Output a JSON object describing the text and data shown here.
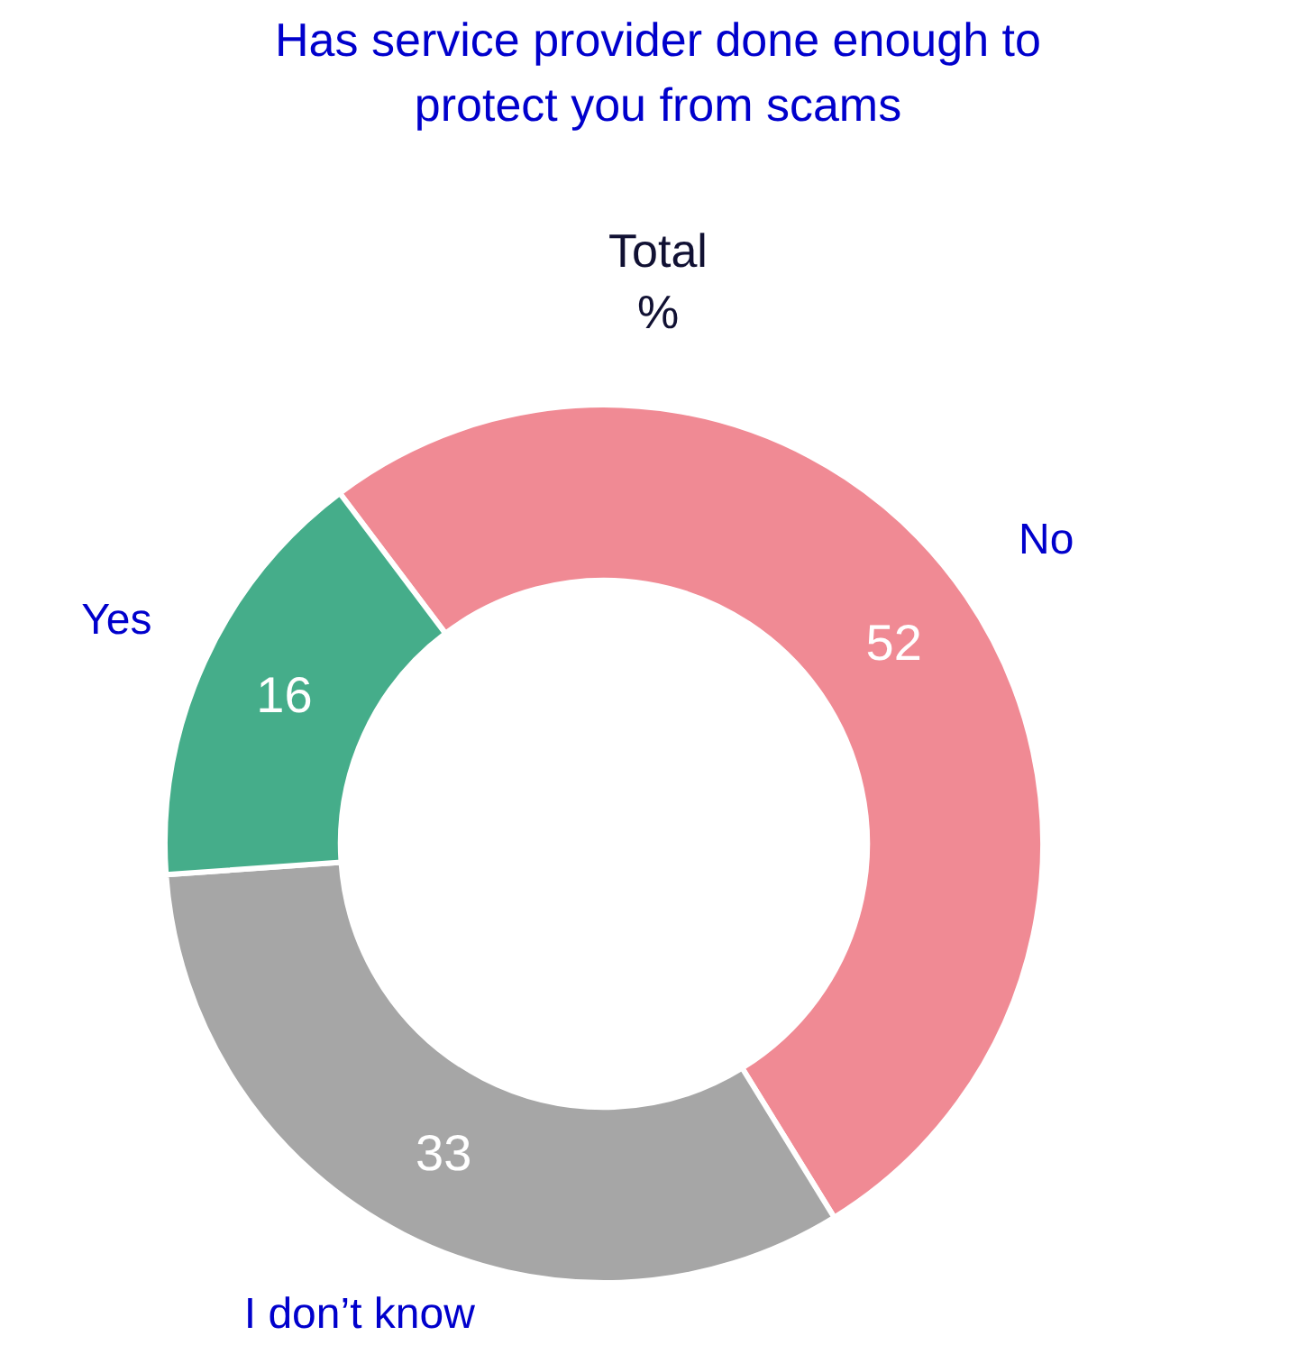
{
  "chart_data": {
    "type": "donut",
    "title": "Has service provider done enough to protect you from scams",
    "subtitle": "Total",
    "annotations": [
      "%"
    ],
    "categories": [
      "No",
      "I don’t know",
      "Yes"
    ],
    "values": [
      52,
      33,
      16
    ],
    "colors": [
      "#f08a94",
      "#a6a6a6",
      "#45ad8a"
    ],
    "data_labels": true,
    "legend": false
  }
}
